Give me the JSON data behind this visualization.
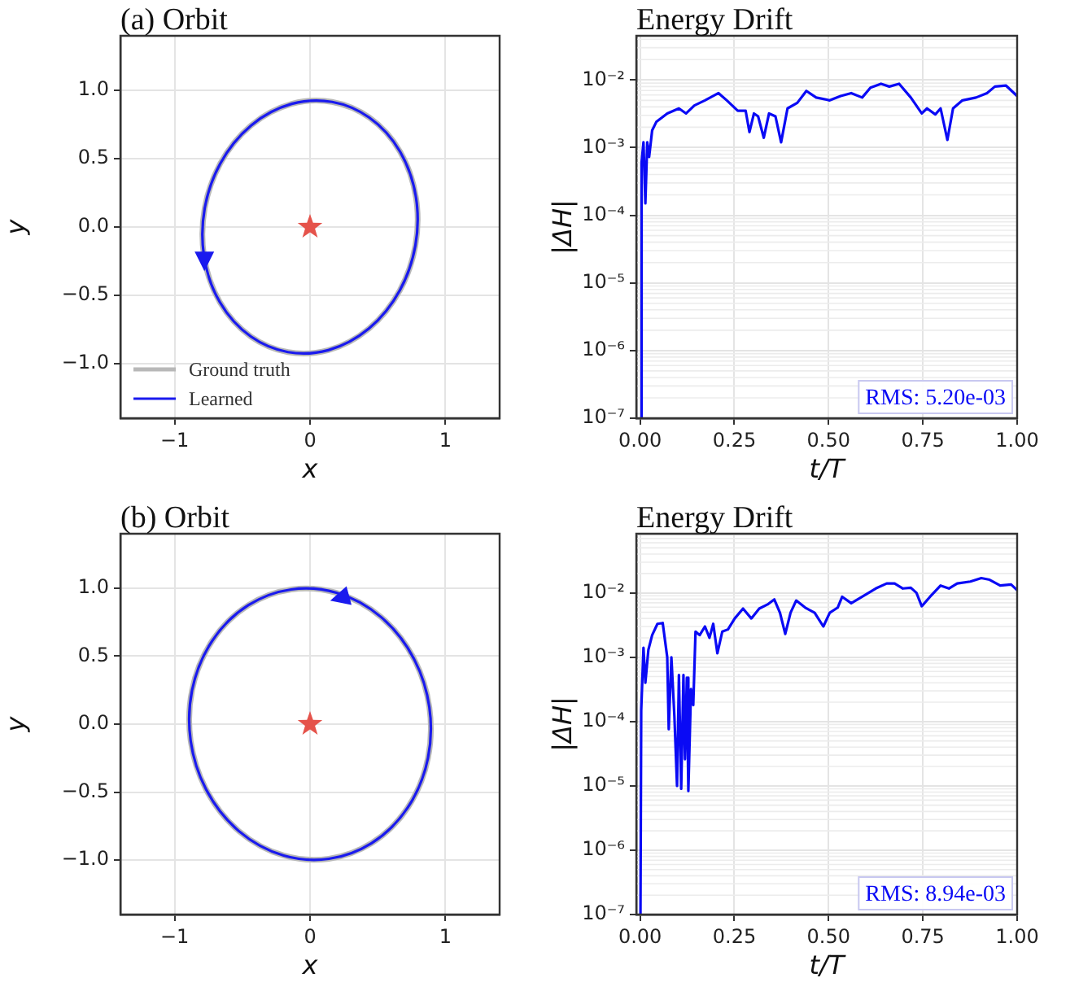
{
  "chart_data": [
    {
      "type": "scatter",
      "title": "(a) Orbit",
      "xlabel": "x",
      "ylabel": "y",
      "xlim": [
        -1.4,
        1.4
      ],
      "ylim": [
        -1.4,
        1.4
      ],
      "xticks": [
        {
          "value": -1,
          "label": "−1"
        },
        {
          "value": 0,
          "label": "0"
        },
        {
          "value": 1,
          "label": "1"
        }
      ],
      "yticks": [
        {
          "value": -1,
          "label": "−1.0"
        },
        {
          "value": -0.5,
          "label": "−0.5"
        },
        {
          "value": 0,
          "label": "0.0"
        },
        {
          "value": 0.5,
          "label": "0.5"
        },
        {
          "value": 1,
          "label": "1.0"
        }
      ],
      "grid": true,
      "annotations": [
        "Ground truth",
        "Learned"
      ],
      "series": [
        {
          "marker": "star",
          "color": "#e5534b",
          "x": [
            0
          ],
          "values": [
            0
          ]
        }
      ]
    },
    {
      "type": "line",
      "title": "Energy Drift",
      "xlabel": "t/T",
      "ylabel": "|ΔH|",
      "log": "y",
      "xlim": [
        -0.01,
        1.0
      ],
      "ylim": [
        1e-07,
        0.045
      ],
      "xticks": [
        {
          "value": 0,
          "label": "0.00"
        },
        {
          "value": 0.25,
          "label": "0.25"
        },
        {
          "value": 0.5,
          "label": "0.50"
        },
        {
          "value": 0.75,
          "label": "0.75"
        },
        {
          "value": 1,
          "label": "1.00"
        }
      ],
      "yticks": [
        {
          "value": 1e-07,
          "label": "10⁻⁷"
        },
        {
          "value": 1e-06,
          "label": "10⁻⁶"
        },
        {
          "value": 1e-05,
          "label": "10⁻⁵"
        },
        {
          "value": 0.0001,
          "label": "10⁻⁴"
        },
        {
          "value": 0.001,
          "label": "10⁻³"
        },
        {
          "value": 0.01,
          "label": "10⁻²"
        }
      ],
      "grid": true,
      "annotations": [
        "RMS: 5.20e-03"
      ],
      "series": [
        {
          "color": "#0a0af5",
          "x": [
            0.003,
            0.004,
            0.009,
            0.014,
            0.019,
            0.024,
            0.032,
            0.043,
            0.072,
            0.103,
            0.122,
            0.144,
            0.172,
            0.208,
            0.23,
            0.259,
            0.28,
            0.29,
            0.302,
            0.313,
            0.328,
            0.342,
            0.359,
            0.374,
            0.391,
            0.417,
            0.441,
            0.467,
            0.503,
            0.532,
            0.56,
            0.589,
            0.611,
            0.639,
            0.661,
            0.687,
            0.718,
            0.747,
            0.761,
            0.783,
            0.797,
            0.815,
            0.83,
            0.855,
            0.891,
            0.92,
            0.941,
            0.97,
            1.0
          ],
          "values": [
            1e-07,
            0.0006,
            0.0012,
            0.00015,
            0.0012,
            0.00073,
            0.0018,
            0.0024,
            0.0032,
            0.0038,
            0.0032,
            0.0042,
            0.005,
            0.0064,
            0.005,
            0.0035,
            0.0035,
            0.0017,
            0.0032,
            0.0029,
            0.0014,
            0.0032,
            0.0029,
            0.0012,
            0.0038,
            0.0046,
            0.0069,
            0.0055,
            0.005,
            0.0058,
            0.0064,
            0.0055,
            0.0077,
            0.0088,
            0.008,
            0.0088,
            0.0055,
            0.0032,
            0.0038,
            0.0031,
            0.0038,
            0.0013,
            0.0038,
            0.005,
            0.0055,
            0.0064,
            0.008,
            0.0083,
            0.0058
          ]
        }
      ]
    },
    {
      "type": "scatter",
      "title": "(b) Orbit",
      "xlabel": "x",
      "ylabel": "y",
      "xlim": [
        -1.4,
        1.4
      ],
      "ylim": [
        -1.4,
        1.4
      ],
      "xticks": [
        {
          "value": -1,
          "label": "−1"
        },
        {
          "value": 0,
          "label": "0"
        },
        {
          "value": 1,
          "label": "1"
        }
      ],
      "yticks": [
        {
          "value": -1,
          "label": "−1.0"
        },
        {
          "value": -0.5,
          "label": "−0.5"
        },
        {
          "value": 0,
          "label": "0.0"
        },
        {
          "value": 0.5,
          "label": "0.5"
        },
        {
          "value": 1,
          "label": "1.0"
        }
      ],
      "grid": true,
      "series": [
        {
          "marker": "star",
          "color": "#e5534b",
          "x": [
            0
          ],
          "values": [
            0
          ]
        }
      ]
    },
    {
      "type": "line",
      "title": "Energy Drift",
      "xlabel": "t/T",
      "ylabel": "|ΔH|",
      "log": "y",
      "xlim": [
        -0.01,
        1.0
      ],
      "ylim": [
        1e-07,
        0.083
      ],
      "xticks": [
        {
          "value": 0,
          "label": "0.00"
        },
        {
          "value": 0.25,
          "label": "0.25"
        },
        {
          "value": 0.5,
          "label": "0.50"
        },
        {
          "value": 0.75,
          "label": "0.75"
        },
        {
          "value": 1,
          "label": "1.00"
        }
      ],
      "yticks": [
        {
          "value": 1e-07,
          "label": "10⁻⁷"
        },
        {
          "value": 1e-06,
          "label": "10⁻⁶"
        },
        {
          "value": 1e-05,
          "label": "10⁻⁵"
        },
        {
          "value": 0.0001,
          "label": "10⁻⁴"
        },
        {
          "value": 0.001,
          "label": "10⁻³"
        },
        {
          "value": 0.01,
          "label": "10⁻²"
        }
      ],
      "grid": true,
      "annotations": [
        "RMS: 8.94e-03"
      ],
      "series": [
        {
          "color": "#0a0af5",
          "x": [
            0.001,
            0.003,
            0.009,
            0.014,
            0.022,
            0.032,
            0.046,
            0.06,
            0.072,
            0.076,
            0.083,
            0.091,
            0.098,
            0.103,
            0.109,
            0.115,
            0.119,
            0.124,
            0.128,
            0.135,
            0.141,
            0.147,
            0.158,
            0.172,
            0.184,
            0.194,
            0.205,
            0.218,
            0.233,
            0.251,
            0.273,
            0.295,
            0.316,
            0.338,
            0.356,
            0.371,
            0.385,
            0.399,
            0.414,
            0.438,
            0.463,
            0.486,
            0.503,
            0.524,
            0.536,
            0.56,
            0.589,
            0.625,
            0.654,
            0.675,
            0.697,
            0.718,
            0.733,
            0.747,
            0.769,
            0.797,
            0.819,
            0.841,
            0.876,
            0.905,
            0.927,
            0.955,
            0.984,
            1.0
          ],
          "values": [
            1e-07,
            0.00015,
            0.0014,
            0.0004,
            0.0013,
            0.0022,
            0.0033,
            0.0034,
            0.001,
            7.6e-05,
            0.001,
            0.00012,
            1e-05,
            0.00053,
            9e-06,
            0.00053,
            2.6e-05,
            0.00048,
            8.3e-06,
            0.00032,
            0.00018,
            0.0025,
            0.0022,
            0.003,
            0.002,
            0.0033,
            0.00115,
            0.0025,
            0.0027,
            0.004,
            0.0057,
            0.004,
            0.0057,
            0.0066,
            0.0079,
            0.0049,
            0.0023,
            0.0049,
            0.0076,
            0.0059,
            0.0049,
            0.003,
            0.0049,
            0.0059,
            0.0087,
            0.0069,
            0.0087,
            0.0117,
            0.014,
            0.014,
            0.0117,
            0.012,
            0.01,
            0.0062,
            0.0087,
            0.013,
            0.0117,
            0.014,
            0.015,
            0.017,
            0.016,
            0.013,
            0.0135,
            0.011
          ]
        }
      ]
    }
  ]
}
